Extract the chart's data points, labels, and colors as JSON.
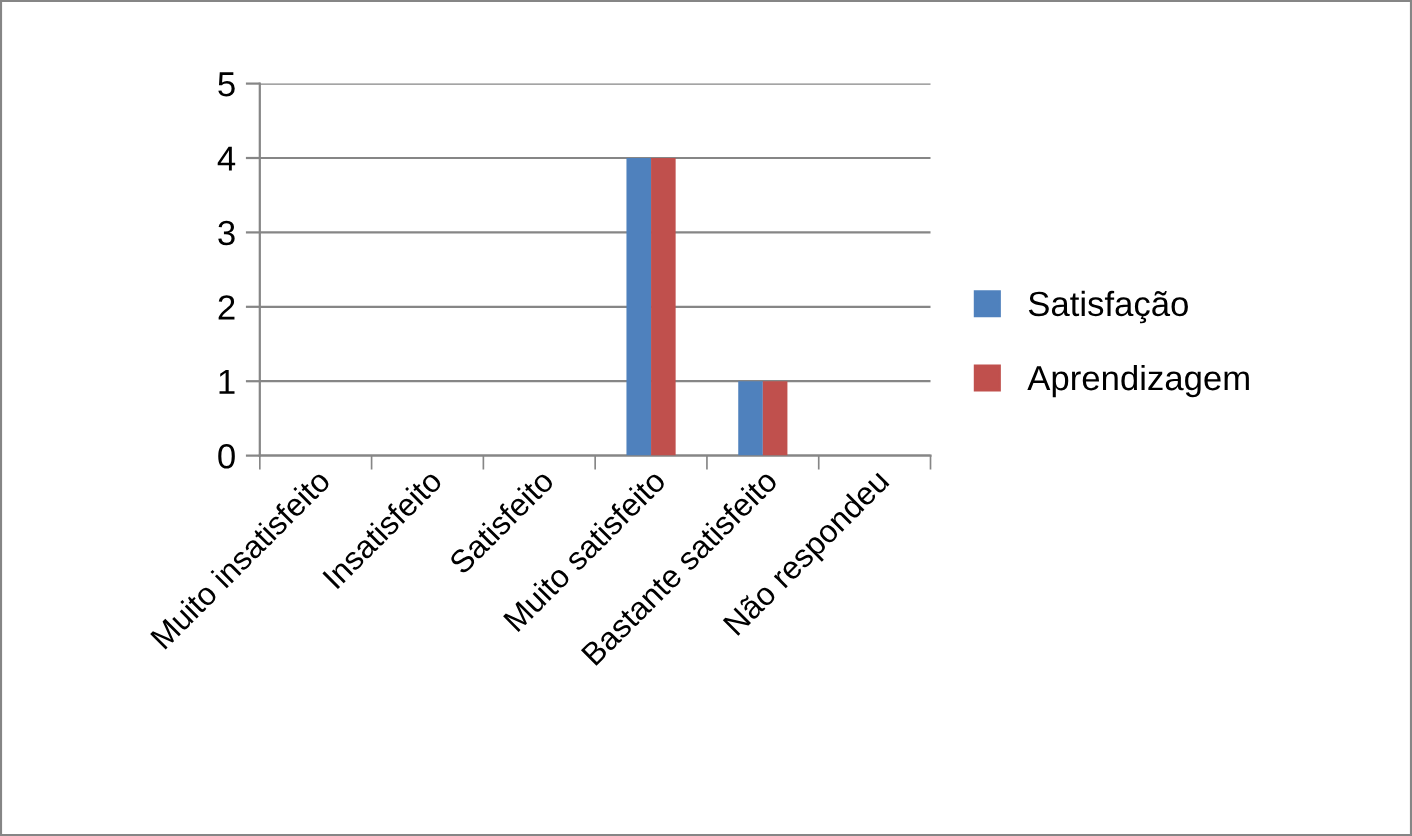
{
  "chart_data": {
    "type": "bar",
    "categories": [
      "Muito insatisfeito",
      "Insatisfeito",
      "Satisfeito",
      "Muito satisfeito",
      "Bastante satisfeito",
      "Não respondeu"
    ],
    "series": [
      {
        "name": "Satisfação",
        "color": "#4f81bd",
        "values": [
          0,
          0,
          0,
          4,
          1,
          0
        ]
      },
      {
        "name": "Aprendizagem",
        "color": "#c0504d",
        "values": [
          0,
          0,
          0,
          4,
          1,
          0
        ]
      }
    ],
    "ylim": [
      0,
      5
    ],
    "yticks": [
      0,
      1,
      2,
      3,
      4,
      5
    ],
    "grid": "y",
    "legend": "right"
  }
}
